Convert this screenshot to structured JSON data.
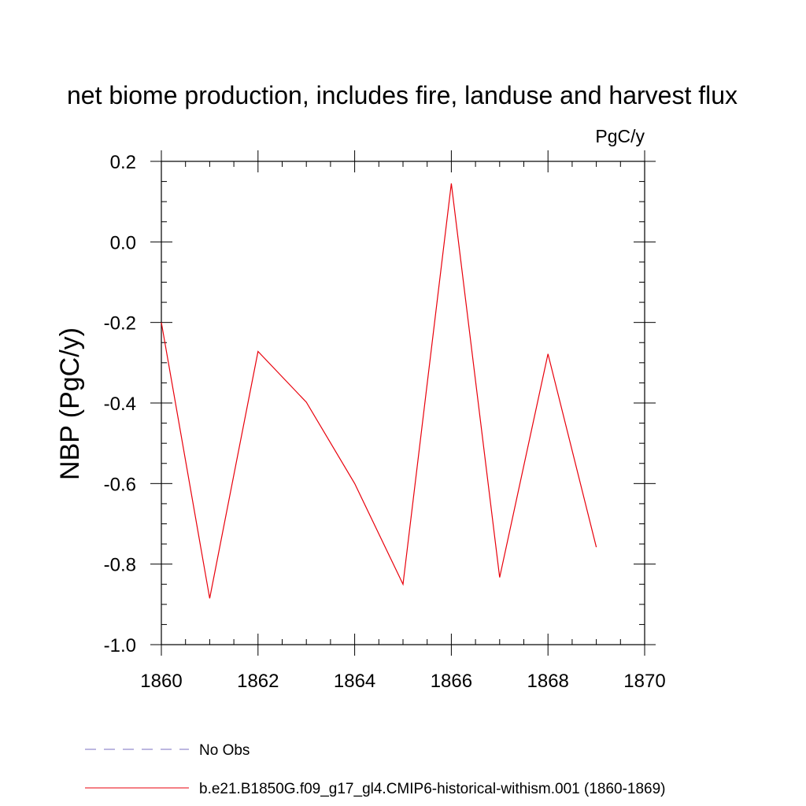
{
  "chart_data": {
    "type": "line",
    "title": "net biome production, includes fire, landuse and harvest flux",
    "units_label": "PgC/y",
    "ylabel": "NBP  (PgC/y)",
    "xlabel": "",
    "xlim": [
      1860,
      1870
    ],
    "ylim": [
      -1.0,
      0.2
    ],
    "x_ticks": [
      1860,
      1862,
      1864,
      1866,
      1868,
      1870
    ],
    "x_tick_labels": [
      "1860",
      "1862",
      "1864",
      "1866",
      "1868",
      "1870"
    ],
    "y_ticks": [
      0.2,
      0.0,
      -0.2,
      -0.4,
      -0.6,
      -0.8,
      -1.0
    ],
    "y_tick_labels": [
      "0.2",
      "0.0",
      "-0.2",
      "-0.4",
      "-0.6",
      "-0.8",
      "-1.0"
    ],
    "x_minor_step": 0.5,
    "y_minor_step": 0.05,
    "grid": false,
    "legend_position": "bottom",
    "series": [
      {
        "name": "b.e21.B1850G.f09_g17_gl4.CMIP6-historical-withism.001 (1860-1869)",
        "color": "#e8000b",
        "style": "solid",
        "x": [
          1860,
          1861,
          1862,
          1863,
          1864,
          1865,
          1866,
          1867,
          1868,
          1869
        ],
        "y": [
          -0.2,
          -0.885,
          -0.272,
          -0.398,
          -0.6,
          -0.85,
          0.145,
          -0.833,
          -0.278,
          -0.758
        ]
      }
    ],
    "legend": [
      {
        "label": "No Obs",
        "color": "#7a6fc0",
        "style": "dashed"
      },
      {
        "label": "b.e21.B1850G.f09_g17_gl4.CMIP6-historical-withism.001 (1860-1869)",
        "color": "#e8000b",
        "style": "solid"
      }
    ]
  }
}
